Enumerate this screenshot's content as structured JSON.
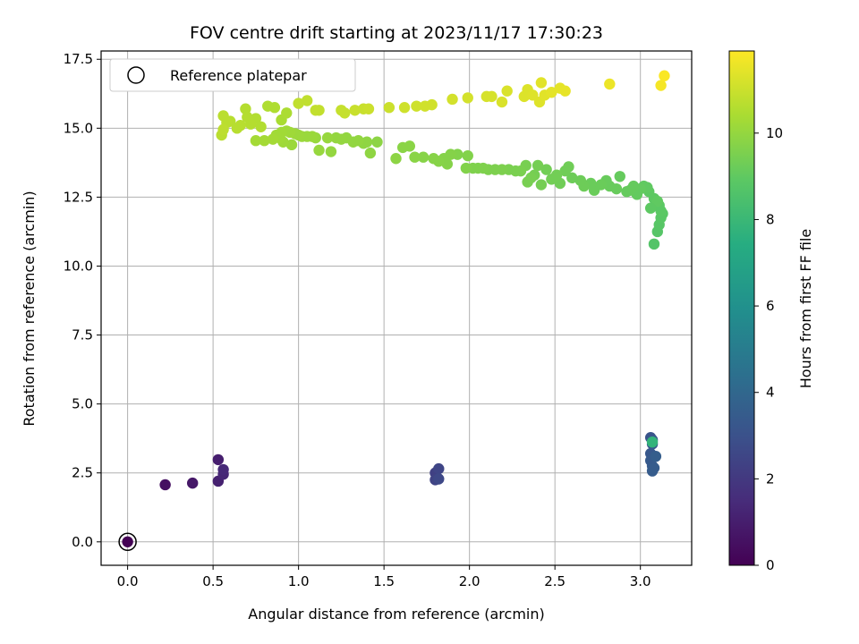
{
  "chart_data": {
    "type": "scatter",
    "title": "FOV centre drift starting at 2023/11/17 17:30:23",
    "xlabel": "Angular distance from reference (arcmin)",
    "ylabel": "Rotation from reference (arcmin)",
    "xlim": [
      -0.155,
      3.3
    ],
    "ylim": [
      -0.85,
      17.8
    ],
    "x_ticks": [
      0.0,
      0.5,
      1.0,
      1.5,
      2.0,
      2.5,
      3.0
    ],
    "x_tick_labels": [
      "0.0",
      "0.5",
      "1.0",
      "1.5",
      "2.0",
      "2.5",
      "3.0"
    ],
    "y_ticks": [
      0.0,
      2.5,
      5.0,
      7.5,
      10.0,
      12.5,
      15.0,
      17.5
    ],
    "y_tick_labels": [
      "0.0",
      "2.5",
      "5.0",
      "7.5",
      "10.0",
      "12.5",
      "15.0",
      "17.5"
    ],
    "grid": true,
    "colormap": "viridis",
    "colorbar": {
      "label": "Hours from first FF file",
      "range": [
        0,
        11.9
      ],
      "ticks": [
        0,
        2,
        4,
        6,
        8,
        10
      ],
      "tick_labels": [
        "0",
        "2",
        "4",
        "6",
        "8",
        "10"
      ]
    },
    "legend": {
      "position": "top-left",
      "entries": [
        {
          "label": "Reference platepar",
          "marker": "open-circle"
        }
      ]
    },
    "reference_point": {
      "x": 0.0,
      "y": 0.0
    },
    "points": [
      [
        0.0,
        0.0,
        0.05
      ],
      [
        0.22,
        2.07,
        0.5
      ],
      [
        0.38,
        2.13,
        0.8
      ],
      [
        0.53,
        2.98,
        1.0
      ],
      [
        0.53,
        2.2,
        1.1
      ],
      [
        0.56,
        2.45,
        1.3
      ],
      [
        0.56,
        2.62,
        1.4
      ],
      [
        1.8,
        2.5,
        2.3
      ],
      [
        1.8,
        2.25,
        2.4
      ],
      [
        1.82,
        2.65,
        2.5
      ],
      [
        1.82,
        2.28,
        2.6
      ],
      [
        3.06,
        3.78,
        3.1
      ],
      [
        3.07,
        3.7,
        3.2
      ],
      [
        3.07,
        3.55,
        3.3
      ],
      [
        3.06,
        3.2,
        3.3
      ],
      [
        3.06,
        2.95,
        3.4
      ],
      [
        3.07,
        2.75,
        3.4
      ],
      [
        3.07,
        2.57,
        3.5
      ],
      [
        3.08,
        2.68,
        3.5
      ],
      [
        3.09,
        3.1,
        3.6
      ],
      [
        3.07,
        3.62,
        7.8
      ],
      [
        3.08,
        10.8,
        8.7
      ],
      [
        3.1,
        11.25,
        8.75
      ],
      [
        3.11,
        11.5,
        8.8
      ],
      [
        3.12,
        11.75,
        8.85
      ],
      [
        3.13,
        11.9,
        8.85
      ],
      [
        3.12,
        12.0,
        8.9
      ],
      [
        3.11,
        12.2,
        8.9
      ],
      [
        3.08,
        12.45,
        8.95
      ],
      [
        3.1,
        12.35,
        9.0
      ],
      [
        3.06,
        12.1,
        8.95
      ],
      [
        3.05,
        12.7,
        8.95
      ],
      [
        3.04,
        12.85,
        9.0
      ],
      [
        3.02,
        12.9,
        9.0
      ],
      [
        3.0,
        12.8,
        9.05
      ],
      [
        2.98,
        12.6,
        9.05
      ],
      [
        2.96,
        12.9,
        9.1
      ],
      [
        2.94,
        12.75,
        9.1
      ],
      [
        2.92,
        12.7,
        9.1
      ],
      [
        2.88,
        13.25,
        9.1
      ],
      [
        2.86,
        12.8,
        9.15
      ],
      [
        2.82,
        12.9,
        9.15
      ],
      [
        2.8,
        13.1,
        9.15
      ],
      [
        2.77,
        12.95,
        9.2
      ],
      [
        2.73,
        12.75,
        9.2
      ],
      [
        2.71,
        13.0,
        9.2
      ],
      [
        2.67,
        12.9,
        9.25
      ],
      [
        2.65,
        13.1,
        9.25
      ],
      [
        2.6,
        13.2,
        9.25
      ],
      [
        2.58,
        13.6,
        9.3
      ],
      [
        2.56,
        13.45,
        9.3
      ],
      [
        2.53,
        13.0,
        9.3
      ],
      [
        2.51,
        13.3,
        9.35
      ],
      [
        2.48,
        13.15,
        9.35
      ],
      [
        2.45,
        13.5,
        9.35
      ],
      [
        2.42,
        12.95,
        9.4
      ],
      [
        2.4,
        13.65,
        9.4
      ],
      [
        2.38,
        13.3,
        9.4
      ],
      [
        2.36,
        13.2,
        9.45
      ],
      [
        2.34,
        13.05,
        9.45
      ],
      [
        2.33,
        13.65,
        9.45
      ],
      [
        2.3,
        13.45,
        9.5
      ],
      [
        2.27,
        13.45,
        9.5
      ],
      [
        2.23,
        13.5,
        9.5
      ],
      [
        2.19,
        13.5,
        9.55
      ],
      [
        2.15,
        13.5,
        9.55
      ],
      [
        2.11,
        13.5,
        9.55
      ],
      [
        2.08,
        13.55,
        9.6
      ],
      [
        2.05,
        13.55,
        9.6
      ],
      [
        2.02,
        13.55,
        9.6
      ],
      [
        1.98,
        13.55,
        9.65
      ],
      [
        1.99,
        14.0,
        9.65
      ],
      [
        1.93,
        14.05,
        9.65
      ],
      [
        1.89,
        14.05,
        9.7
      ],
      [
        1.87,
        13.7,
        9.7
      ],
      [
        1.85,
        13.9,
        9.7
      ],
      [
        1.82,
        13.8,
        9.75
      ],
      [
        1.79,
        13.9,
        9.75
      ],
      [
        1.73,
        13.95,
        9.75
      ],
      [
        1.68,
        13.95,
        9.8
      ],
      [
        1.65,
        14.35,
        9.8
      ],
      [
        1.61,
        14.3,
        9.8
      ],
      [
        1.57,
        13.9,
        9.85
      ],
      [
        1.46,
        14.5,
        9.85
      ],
      [
        1.42,
        14.1,
        9.9
      ],
      [
        1.4,
        14.5,
        9.9
      ],
      [
        1.38,
        14.45,
        9.9
      ],
      [
        1.35,
        14.55,
        9.95
      ],
      [
        1.32,
        14.5,
        9.95
      ],
      [
        1.28,
        14.65,
        9.95
      ],
      [
        1.25,
        14.6,
        10.0
      ],
      [
        1.22,
        14.65,
        10.0
      ],
      [
        1.19,
        14.15,
        10.0
      ],
      [
        1.17,
        14.65,
        10.05
      ],
      [
        1.12,
        14.2,
        10.05
      ],
      [
        1.1,
        14.65,
        10.05
      ],
      [
        1.08,
        14.7,
        10.1
      ],
      [
        1.05,
        14.7,
        10.1
      ],
      [
        1.02,
        14.7,
        10.1
      ],
      [
        1.0,
        14.75,
        10.15
      ],
      [
        0.98,
        14.8,
        10.15
      ],
      [
        0.96,
        14.4,
        10.15
      ],
      [
        0.95,
        14.85,
        10.2
      ],
      [
        0.93,
        14.9,
        10.2
      ],
      [
        0.91,
        14.5,
        10.2
      ],
      [
        0.9,
        14.85,
        10.25
      ],
      [
        0.89,
        14.65,
        10.25
      ],
      [
        0.87,
        14.75,
        10.25
      ],
      [
        0.85,
        14.6,
        10.3
      ],
      [
        0.8,
        14.55,
        10.3
      ],
      [
        0.75,
        14.55,
        10.3
      ],
      [
        0.9,
        15.3,
        10.4
      ],
      [
        0.93,
        15.55,
        10.45
      ],
      [
        0.86,
        15.75,
        10.5
      ],
      [
        0.82,
        15.8,
        10.5
      ],
      [
        0.78,
        15.05,
        10.55
      ],
      [
        0.75,
        15.35,
        10.55
      ],
      [
        0.72,
        15.15,
        10.6
      ],
      [
        0.7,
        15.4,
        10.6
      ],
      [
        0.69,
        15.7,
        10.6
      ],
      [
        0.66,
        15.1,
        10.65
      ],
      [
        0.64,
        15.0,
        10.65
      ],
      [
        0.6,
        15.25,
        10.65
      ],
      [
        0.58,
        15.2,
        10.7
      ],
      [
        0.56,
        15.45,
        10.7
      ],
      [
        0.55,
        14.75,
        10.7
      ],
      [
        0.56,
        14.95,
        10.75
      ],
      [
        1.0,
        15.9,
        10.8
      ],
      [
        1.05,
        16.0,
        10.8
      ],
      [
        1.1,
        15.65,
        10.85
      ],
      [
        1.12,
        15.65,
        10.85
      ],
      [
        1.25,
        15.65,
        10.9
      ],
      [
        1.27,
        15.55,
        10.9
      ],
      [
        1.33,
        15.65,
        10.95
      ],
      [
        1.38,
        15.7,
        10.95
      ],
      [
        1.41,
        15.7,
        11.0
      ],
      [
        1.53,
        15.75,
        11.0
      ],
      [
        1.62,
        15.75,
        11.05
      ],
      [
        1.69,
        15.8,
        11.05
      ],
      [
        1.74,
        15.8,
        11.1
      ],
      [
        1.78,
        15.85,
        11.1
      ],
      [
        1.9,
        16.05,
        11.15
      ],
      [
        1.99,
        16.1,
        11.15
      ],
      [
        2.1,
        16.15,
        11.2
      ],
      [
        2.13,
        16.15,
        11.2
      ],
      [
        2.19,
        15.95,
        11.25
      ],
      [
        2.22,
        16.35,
        11.25
      ],
      [
        2.32,
        16.15,
        11.3
      ],
      [
        2.34,
        16.4,
        11.3
      ],
      [
        2.37,
        16.2,
        11.35
      ],
      [
        2.41,
        15.95,
        11.35
      ],
      [
        2.42,
        16.65,
        11.4
      ],
      [
        2.44,
        16.2,
        11.4
      ],
      [
        2.48,
        16.3,
        11.45
      ],
      [
        2.53,
        16.45,
        11.45
      ],
      [
        2.56,
        16.35,
        11.5
      ],
      [
        2.82,
        16.6,
        11.6
      ],
      [
        3.12,
        16.55,
        11.75
      ],
      [
        3.14,
        16.9,
        11.85
      ]
    ]
  }
}
